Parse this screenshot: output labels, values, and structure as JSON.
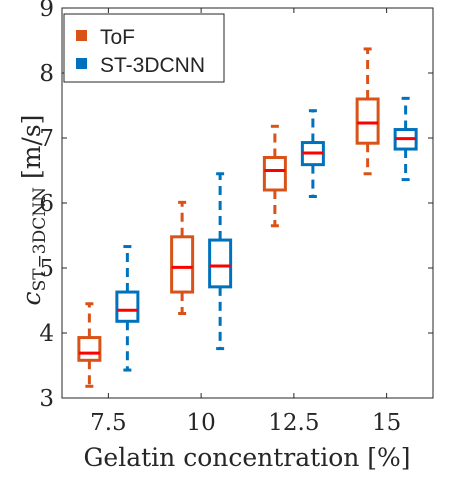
{
  "chart_data": {
    "type": "box",
    "title": "",
    "xlabel": "Gelatin concentration [%]",
    "ylabel_main": "c",
    "ylabel_sub": "ST−3DCNN",
    "ylabel_unit": " [m/s]",
    "categories": [
      "7.5",
      "10",
      "12.5",
      "15"
    ],
    "ylim": [
      3,
      9
    ],
    "yticks": [
      3,
      4,
      5,
      6,
      7,
      8,
      9
    ],
    "grid": false,
    "legend_position": "top-left",
    "series": [
      {
        "name": "ToF",
        "color": "#D95319",
        "boxes": [
          {
            "whisker_low": 3.18,
            "q1": 3.58,
            "median": 3.69,
            "q3": 3.93,
            "whisker_high": 4.45
          },
          {
            "whisker_low": 4.3,
            "q1": 4.63,
            "median": 5.01,
            "q3": 5.48,
            "whisker_high": 6.01
          },
          {
            "whisker_low": 5.65,
            "q1": 6.2,
            "median": 6.5,
            "q3": 6.7,
            "whisker_high": 7.18
          },
          {
            "whisker_low": 6.45,
            "q1": 6.92,
            "median": 7.23,
            "q3": 7.6,
            "whisker_high": 8.37
          }
        ]
      },
      {
        "name": "ST-3DCNN",
        "color": "#0072BD",
        "boxes": [
          {
            "whisker_low": 3.43,
            "q1": 4.18,
            "median": 4.35,
            "q3": 4.63,
            "whisker_high": 5.33
          },
          {
            "whisker_low": 3.76,
            "q1": 4.71,
            "median": 5.03,
            "q3": 5.43,
            "whisker_high": 6.45
          },
          {
            "whisker_low": 6.1,
            "q1": 6.59,
            "median": 6.77,
            "q3": 6.93,
            "whisker_high": 7.42
          },
          {
            "whisker_low": 6.36,
            "q1": 6.83,
            "median": 6.99,
            "q3": 7.13,
            "whisker_high": 7.61
          }
        ]
      }
    ],
    "median_color": "#FF0000"
  }
}
